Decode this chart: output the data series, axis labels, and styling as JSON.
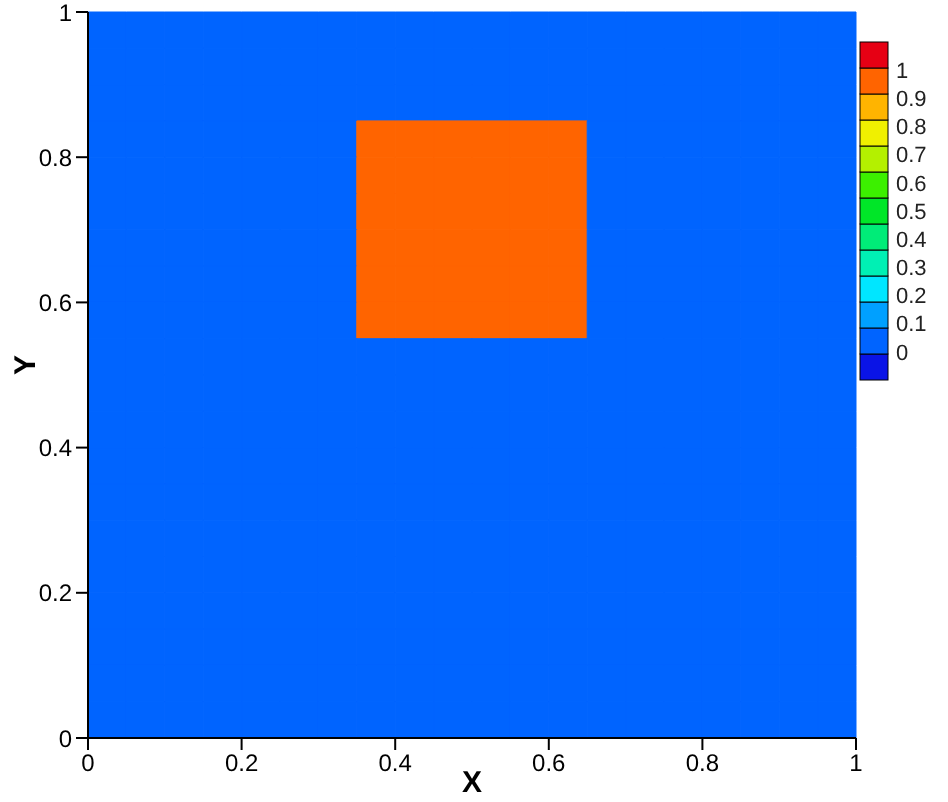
{
  "chart_data": {
    "type": "heatmap",
    "xlabel": "X",
    "ylabel": "Y",
    "xlim": [
      0,
      1
    ],
    "xticks": [
      0,
      0.2,
      0.4,
      0.6,
      0.8,
      1
    ],
    "ylim": [
      0,
      1
    ],
    "yticks": [
      0,
      0.2,
      0.4,
      0.6,
      0.8,
      1
    ],
    "clim": [
      -0.1,
      1.1
    ],
    "cticks": [
      0,
      0.1,
      0.2,
      0.3,
      0.4,
      0.5,
      0.6,
      0.7,
      0.8,
      0.9,
      1
    ],
    "colors": [
      "#0a14e6",
      "#0064ff",
      "#00a0ff",
      "#00e6ff",
      "#00f0b4",
      "#00ec78",
      "#00e628",
      "#3cf000",
      "#b4f000",
      "#f0f000",
      "#ffb400",
      "#ff6400",
      "#e60014"
    ],
    "cells": [
      [
        0.05,
        0.05,
        0.05,
        0.05,
        0.05,
        0.05,
        0.05,
        0.05,
        0.05,
        0.05,
        0.05,
        0.05,
        0.05,
        0.05,
        0.05,
        0.05,
        0.05,
        0.05,
        0.05,
        0.05
      ],
      [
        0.05,
        0.05,
        0.05,
        0.05,
        0.05,
        0.05,
        0.05,
        0.05,
        0.05,
        0.05,
        0.05,
        0.05,
        0.05,
        0.05,
        0.05,
        0.05,
        0.05,
        0.05,
        0.05,
        0.05
      ],
      [
        0.05,
        0.05,
        0.05,
        0.05,
        0.05,
        0.05,
        0.05,
        0.05,
        0.05,
        0.05,
        0.05,
        0.05,
        0.05,
        0.05,
        0.05,
        0.05,
        0.05,
        0.05,
        0.05,
        0.05
      ],
      [
        0.05,
        0.05,
        0.05,
        0.05,
        0.05,
        0.05,
        0.05,
        0.95,
        0.95,
        0.95,
        0.95,
        0.95,
        0.95,
        0.05,
        0.05,
        0.05,
        0.05,
        0.05,
        0.05,
        0.05
      ],
      [
        0.05,
        0.05,
        0.05,
        0.05,
        0.05,
        0.05,
        0.05,
        0.95,
        0.95,
        0.95,
        0.95,
        0.95,
        0.95,
        0.05,
        0.05,
        0.05,
        0.05,
        0.05,
        0.05,
        0.05
      ],
      [
        0.05,
        0.05,
        0.05,
        0.05,
        0.05,
        0.05,
        0.05,
        0.95,
        0.95,
        0.95,
        0.95,
        0.95,
        0.95,
        0.05,
        0.05,
        0.05,
        0.05,
        0.05,
        0.05,
        0.05
      ],
      [
        0.05,
        0.05,
        0.05,
        0.05,
        0.05,
        0.05,
        0.05,
        0.95,
        0.95,
        0.95,
        0.95,
        0.95,
        0.95,
        0.05,
        0.05,
        0.05,
        0.05,
        0.05,
        0.05,
        0.05
      ],
      [
        0.05,
        0.05,
        0.05,
        0.05,
        0.05,
        0.05,
        0.05,
        0.95,
        0.95,
        0.95,
        0.95,
        0.95,
        0.95,
        0.05,
        0.05,
        0.05,
        0.05,
        0.05,
        0.05,
        0.05
      ],
      [
        0.05,
        0.05,
        0.05,
        0.05,
        0.05,
        0.05,
        0.05,
        0.95,
        0.95,
        0.95,
        0.95,
        0.95,
        0.95,
        0.05,
        0.05,
        0.05,
        0.05,
        0.05,
        0.05,
        0.05
      ],
      [
        0.05,
        0.05,
        0.05,
        0.05,
        0.05,
        0.05,
        0.05,
        0.05,
        0.05,
        0.05,
        0.05,
        0.05,
        0.05,
        0.05,
        0.05,
        0.05,
        0.05,
        0.05,
        0.05,
        0.05
      ],
      [
        0.05,
        0.05,
        0.05,
        0.05,
        0.05,
        0.05,
        0.05,
        0.05,
        0.05,
        0.05,
        0.05,
        0.05,
        0.05,
        0.05,
        0.05,
        0.05,
        0.05,
        0.05,
        0.05,
        0.05
      ],
      [
        0.05,
        0.05,
        0.05,
        0.05,
        0.05,
        0.05,
        0.05,
        0.05,
        0.05,
        0.05,
        0.05,
        0.05,
        0.05,
        0.05,
        0.05,
        0.05,
        0.05,
        0.05,
        0.05,
        0.05
      ],
      [
        0.05,
        0.05,
        0.05,
        0.05,
        0.05,
        0.05,
        0.05,
        0.05,
        0.05,
        0.05,
        0.05,
        0.05,
        0.05,
        0.05,
        0.05,
        0.05,
        0.05,
        0.05,
        0.05,
        0.05
      ],
      [
        0.05,
        0.05,
        0.05,
        0.05,
        0.05,
        0.05,
        0.05,
        0.05,
        0.05,
        0.05,
        0.05,
        0.05,
        0.05,
        0.05,
        0.05,
        0.05,
        0.05,
        0.05,
        0.05,
        0.05
      ],
      [
        0.05,
        0.05,
        0.05,
        0.05,
        0.05,
        0.05,
        0.05,
        0.05,
        0.05,
        0.05,
        0.05,
        0.05,
        0.05,
        0.05,
        0.05,
        0.05,
        0.05,
        0.05,
        0.05,
        0.05
      ],
      [
        0.05,
        0.05,
        0.05,
        0.05,
        0.05,
        0.05,
        0.05,
        0.05,
        0.05,
        0.05,
        0.05,
        0.05,
        0.05,
        0.05,
        0.05,
        0.05,
        0.05,
        0.05,
        0.05,
        0.05
      ],
      [
        0.05,
        0.05,
        0.05,
        0.05,
        0.05,
        0.05,
        0.05,
        0.05,
        0.05,
        0.05,
        0.05,
        0.05,
        0.05,
        0.05,
        0.05,
        0.05,
        0.05,
        0.05,
        0.05,
        0.05
      ],
      [
        0.05,
        0.05,
        0.05,
        0.05,
        0.05,
        0.05,
        0.05,
        0.05,
        0.05,
        0.05,
        0.05,
        0.05,
        0.05,
        0.05,
        0.05,
        0.05,
        0.05,
        0.05,
        0.05,
        0.05
      ],
      [
        0.05,
        0.05,
        0.05,
        0.05,
        0.05,
        0.05,
        0.05,
        0.05,
        0.05,
        0.05,
        0.05,
        0.05,
        0.05,
        0.05,
        0.05,
        0.05,
        0.05,
        0.05,
        0.05,
        0.05
      ],
      [
        0.05,
        0.05,
        0.05,
        0.05,
        0.05,
        0.05,
        0.05,
        0.05,
        0.05,
        0.05,
        0.05,
        0.05,
        0.05,
        0.05,
        0.05,
        0.05,
        0.05,
        0.05,
        0.05,
        0.05
      ]
    ]
  }
}
